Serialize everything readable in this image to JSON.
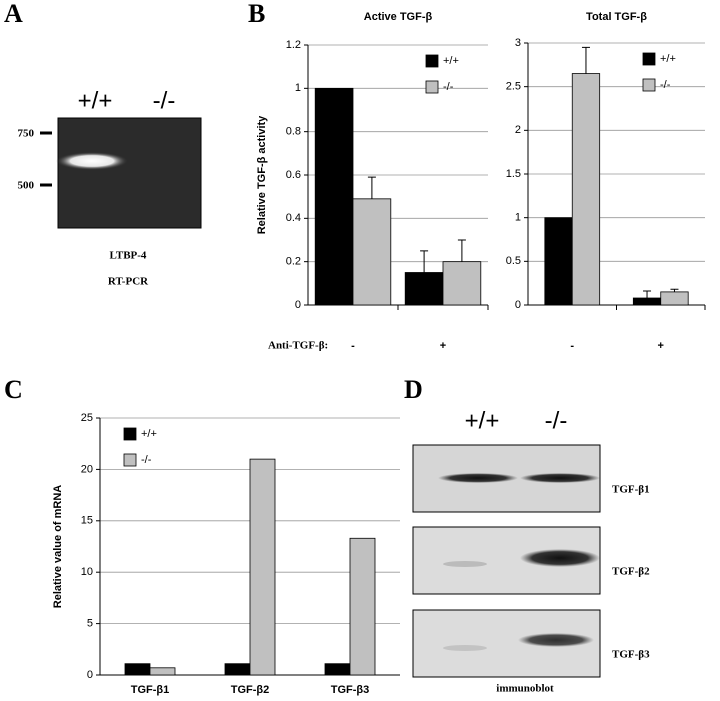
{
  "figure": {
    "panel_a": {
      "letter": "A",
      "lanes": [
        "+/+",
        "-/-"
      ],
      "markers": [
        "750",
        "500"
      ],
      "caption": [
        "LTBP-4",
        "RT-PCR"
      ]
    },
    "panel_b": {
      "letter": "B",
      "x_axis_label": "Anti-TGF-β:"
    },
    "panel_c": {
      "letter": "C"
    },
    "panel_d": {
      "letter": "D",
      "lanes": [
        "+/+",
        "-/-"
      ],
      "blots": [
        "TGF-β1",
        "TGF-β2",
        "TGF-β3"
      ],
      "caption": "immunoblot"
    }
  },
  "chart_data": [
    {
      "type": "bar",
      "title": "Active TGF-β",
      "y_label": "Relative TGF-β activity",
      "categories": [
        "-",
        "+"
      ],
      "series": [
        {
          "name": "+/+",
          "color": "#000000",
          "values": [
            1,
            0.15
          ],
          "errors": [
            0,
            0.1
          ]
        },
        {
          "name": "-/-",
          "color": "#c0c0c0",
          "values": [
            0.49,
            0.2
          ],
          "errors": [
            0.1,
            0.1
          ]
        }
      ],
      "ylim": [
        0,
        1.2
      ],
      "yticks": [
        0,
        0.2,
        0.4,
        0.6,
        0.8,
        1,
        1.2
      ],
      "grid": true,
      "legend": "upper right"
    },
    {
      "type": "bar",
      "title": "Total TGF-β",
      "categories": [
        "-",
        "+"
      ],
      "series": [
        {
          "name": "+/+",
          "color": "#000000",
          "values": [
            1,
            0.08
          ],
          "errors": [
            0,
            0.08
          ]
        },
        {
          "name": "-/-",
          "color": "#c0c0c0",
          "values": [
            2.65,
            0.15
          ],
          "errors": [
            0.3,
            0.03
          ]
        }
      ],
      "ylim": [
        0,
        3
      ],
      "yticks": [
        0,
        0.5,
        1,
        1.5,
        2,
        2.5,
        3
      ],
      "grid": true,
      "legend": "upper right"
    },
    {
      "type": "bar",
      "y_label": "Relative value of mRNA",
      "categories": [
        "TGF-β1",
        "TGF-β2",
        "TGF-β3"
      ],
      "series": [
        {
          "name": "+/+",
          "color": "#000000",
          "values": [
            1.1,
            1.1,
            1.1
          ]
        },
        {
          "name": "-/-",
          "color": "#c0c0c0",
          "values": [
            0.7,
            21,
            13.3
          ]
        }
      ],
      "ylim": [
        0,
        25
      ],
      "yticks": [
        0,
        5,
        10,
        15,
        20,
        25
      ],
      "grid": true,
      "legend": "upper left"
    }
  ]
}
